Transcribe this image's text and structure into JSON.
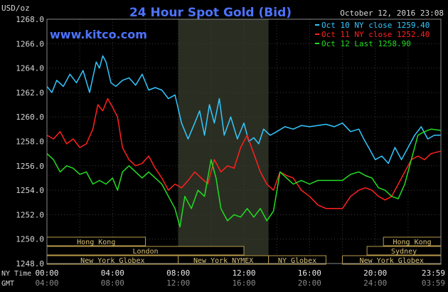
{
  "chart_data": {
    "type": "line",
    "title": "24 Hour Spot Gold (Bid)",
    "source": "www.kitco.com",
    "unit_label": "USD/oz",
    "timestamp": "October 12, 2016 23:08",
    "ylim": [
      1248,
      1268
    ],
    "y_ticks": [
      "1268.0",
      "1266.0",
      "1264.0",
      "1262.0",
      "1260.0",
      "1258.0",
      "1256.0",
      "1254.0",
      "1252.0",
      "1250.0",
      "1248.0"
    ],
    "x_row_labels": [
      "NY Time",
      "GMT"
    ],
    "x_ticks_ny": [
      "00:00",
      "04:00",
      "08:00",
      "12:00",
      "16:00",
      "20:00",
      "23:59"
    ],
    "x_ticks_gmt": [
      "04:00",
      "08:00",
      "12:00",
      "16:00",
      "20:00",
      "24:00",
      "03:59"
    ],
    "x_range_hours": [
      0,
      24
    ],
    "shaded_region_hours": [
      8.0,
      13.5
    ],
    "legend": [
      "Oct 10 NY close 1259.40",
      "Oct 11 NY close 1252.40",
      "Oct 12 Last 1258.90"
    ],
    "sessions": [
      {
        "name": "Hong Kong",
        "row": 0,
        "start": 0,
        "end": 6.0
      },
      {
        "name": "Hong Kong",
        "row": 0,
        "start": 20.5,
        "end": 24
      },
      {
        "name": "London",
        "row": 1,
        "start": 0,
        "end": 12.0
      },
      {
        "name": "Sydney",
        "row": 1,
        "start": 19.5,
        "end": 24
      },
      {
        "name": "New York Globex",
        "row": 2,
        "start": 0,
        "end": 8.0
      },
      {
        "name": "New York NYMEX",
        "row": 2,
        "start": 8.0,
        "end": 13.5
      },
      {
        "name": "NY Globex",
        "row": 2,
        "start": 13.5,
        "end": 17.0
      },
      {
        "name": "New York Globex",
        "row": 2,
        "start": 18.0,
        "end": 24
      }
    ],
    "series": [
      {
        "name": "Oct 10 NY close 1259.40",
        "color": "#33c7ff",
        "x": [
          0,
          0.3,
          0.6,
          1,
          1.4,
          1.8,
          2.2,
          2.6,
          3,
          3.2,
          3.4,
          3.6,
          3.9,
          4.2,
          4.6,
          5,
          5.4,
          5.8,
          6.2,
          6.6,
          7,
          7.4,
          7.8,
          8.2,
          8.6,
          9,
          9.3,
          9.6,
          9.9,
          10.2,
          10.5,
          10.8,
          11.2,
          11.6,
          12,
          12.3,
          12.6,
          12.9,
          13.2,
          13.6,
          14,
          14.5,
          15,
          15.5,
          16,
          16.5,
          17,
          17.5,
          18,
          18.5,
          19,
          19.3,
          19.6,
          20,
          20.4,
          20.8,
          21.2,
          21.6,
          22,
          22.4,
          22.8,
          23.2,
          23.6,
          24
        ],
        "y": [
          1262.5,
          1262,
          1263,
          1262.5,
          1263.5,
          1262.8,
          1263.8,
          1262,
          1264.5,
          1264,
          1265,
          1264.5,
          1262.8,
          1262.5,
          1263,
          1263.2,
          1262.6,
          1263.5,
          1262.2,
          1262.4,
          1262.2,
          1261.5,
          1261.8,
          1259.5,
          1258.2,
          1259.5,
          1260.5,
          1258.5,
          1261,
          1259.5,
          1261.5,
          1258.5,
          1260,
          1258.2,
          1259.5,
          1258,
          1258.3,
          1257.8,
          1259,
          1258.5,
          1258.8,
          1259.2,
          1259,
          1259.3,
          1259.2,
          1259.3,
          1259.4,
          1259.2,
          1259.5,
          1258.8,
          1259,
          1258.2,
          1257.5,
          1256.5,
          1256.8,
          1256.2,
          1257.5,
          1256.5,
          1257.5,
          1258.5,
          1259.2,
          1258.2,
          1258.5,
          1258.5
        ]
      },
      {
        "name": "Oct 11 NY close 1252.40",
        "color": "#ff2020",
        "x": [
          0,
          0.4,
          0.8,
          1.2,
          1.6,
          2,
          2.4,
          2.8,
          3.1,
          3.4,
          3.7,
          4,
          4.3,
          4.6,
          5,
          5.4,
          5.8,
          6.2,
          6.6,
          7,
          7.4,
          7.8,
          8.2,
          8.6,
          9,
          9.4,
          9.8,
          10.2,
          10.6,
          11,
          11.4,
          11.8,
          12.2,
          12.6,
          13,
          13.4,
          13.8,
          14.2,
          14.6,
          15,
          15.5,
          16,
          16.5,
          17,
          17.5,
          18,
          18.5,
          19,
          19.4,
          19.8,
          20.2,
          20.6,
          21,
          21.4,
          21.8,
          22.2,
          22.6,
          23,
          23.4,
          24
        ],
        "y": [
          1258.5,
          1258.2,
          1258.8,
          1257.8,
          1258.2,
          1257.5,
          1257.8,
          1259,
          1261,
          1260.5,
          1261.5,
          1260.8,
          1260,
          1257.5,
          1256.5,
          1256,
          1256.2,
          1256.8,
          1255.8,
          1255,
          1254,
          1254.5,
          1254.2,
          1254.8,
          1255.5,
          1255,
          1254.5,
          1256.5,
          1255.5,
          1256,
          1255.8,
          1257.5,
          1258.5,
          1257,
          1255.5,
          1254.5,
          1254,
          1255.5,
          1255.2,
          1255,
          1254,
          1253.5,
          1252.8,
          1252.5,
          1252.5,
          1252.5,
          1253.5,
          1254,
          1254.2,
          1254,
          1253.5,
          1253.2,
          1253.5,
          1254.5,
          1255.5,
          1256.5,
          1256.8,
          1256.5,
          1257,
          1257.2
        ]
      },
      {
        "name": "Oct 12 Last 1258.90",
        "color": "#22dd22",
        "x": [
          0,
          0.4,
          0.8,
          1.2,
          1.6,
          2,
          2.4,
          2.8,
          3.2,
          3.6,
          4,
          4.3,
          4.6,
          5,
          5.4,
          5.8,
          6.2,
          6.6,
          7,
          7.4,
          7.8,
          8.1,
          8.4,
          8.8,
          9.2,
          9.6,
          10,
          10.3,
          10.6,
          11,
          11.4,
          11.8,
          12.2,
          12.6,
          13,
          13.4,
          13.8,
          14.2,
          14.6,
          15,
          15.5,
          16,
          16.5,
          17,
          17.5,
          18,
          18.5,
          19,
          19.4,
          19.8,
          20.2,
          20.6,
          21,
          21.4,
          21.8,
          22.2,
          22.6,
          23,
          23.4,
          24
        ],
        "y": [
          1257,
          1256.5,
          1255.5,
          1256,
          1255.8,
          1255.3,
          1255.5,
          1254.5,
          1254.8,
          1254.5,
          1255,
          1254,
          1255.5,
          1256,
          1255.5,
          1255,
          1255.5,
          1255,
          1254.5,
          1253.5,
          1252.5,
          1251,
          1253.5,
          1252.5,
          1254,
          1253.5,
          1256.5,
          1255,
          1252.5,
          1251.5,
          1252,
          1251.8,
          1252.5,
          1251.8,
          1252.5,
          1251.5,
          1252.3,
          1255.5,
          1255,
          1254.5,
          1254.8,
          1254.5,
          1254.8,
          1254.8,
          1254.8,
          1254.8,
          1255.3,
          1255.5,
          1255.2,
          1255,
          1254.2,
          1254,
          1253.5,
          1253.3,
          1254.5,
          1256.5,
          1258.5,
          1258.8,
          1259,
          1258.9
        ]
      }
    ]
  }
}
